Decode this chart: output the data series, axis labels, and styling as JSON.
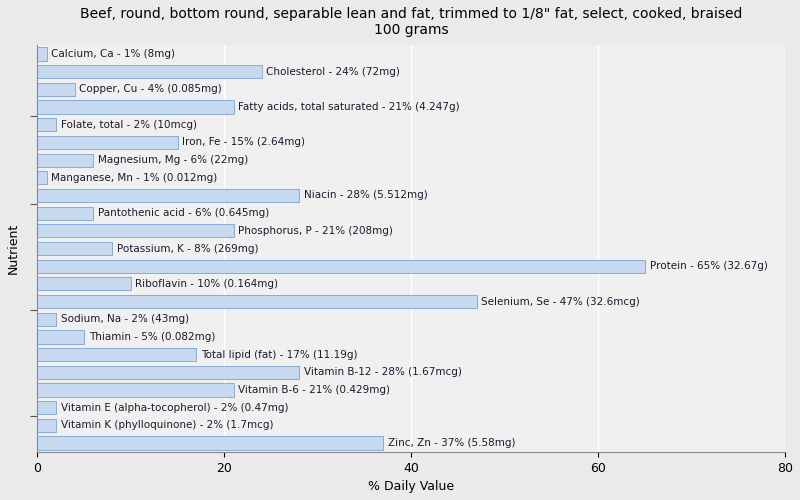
{
  "title": "Beef, round, bottom round, separable lean and fat, trimmed to 1/8\" fat, select, cooked, braised\n100 grams",
  "xlabel": "% Daily Value",
  "ylabel": "Nutrient",
  "nutrients": [
    {
      "label": "Calcium, Ca - 1% (8mg)",
      "value": 1
    },
    {
      "label": "Cholesterol - 24% (72mg)",
      "value": 24
    },
    {
      "label": "Copper, Cu - 4% (0.085mg)",
      "value": 4
    },
    {
      "label": "Fatty acids, total saturated - 21% (4.247g)",
      "value": 21
    },
    {
      "label": "Folate, total - 2% (10mcg)",
      "value": 2
    },
    {
      "label": "Iron, Fe - 15% (2.64mg)",
      "value": 15
    },
    {
      "label": "Magnesium, Mg - 6% (22mg)",
      "value": 6
    },
    {
      "label": "Manganese, Mn - 1% (0.012mg)",
      "value": 1
    },
    {
      "label": "Niacin - 28% (5.512mg)",
      "value": 28
    },
    {
      "label": "Pantothenic acid - 6% (0.645mg)",
      "value": 6
    },
    {
      "label": "Phosphorus, P - 21% (208mg)",
      "value": 21
    },
    {
      "label": "Potassium, K - 8% (269mg)",
      "value": 8
    },
    {
      "label": "Protein - 65% (32.67g)",
      "value": 65
    },
    {
      "label": "Riboflavin - 10% (0.164mg)",
      "value": 10
    },
    {
      "label": "Selenium, Se - 47% (32.6mcg)",
      "value": 47
    },
    {
      "label": "Sodium, Na - 2% (43mg)",
      "value": 2
    },
    {
      "label": "Thiamin - 5% (0.082mg)",
      "value": 5
    },
    {
      "label": "Total lipid (fat) - 17% (11.19g)",
      "value": 17
    },
    {
      "label": "Vitamin B-12 - 28% (1.67mcg)",
      "value": 28
    },
    {
      "label": "Vitamin B-6 - 21% (0.429mg)",
      "value": 21
    },
    {
      "label": "Vitamin E (alpha-tocopherol) - 2% (0.47mg)",
      "value": 2
    },
    {
      "label": "Vitamin K (phylloquinone) - 2% (1.7mcg)",
      "value": 2
    },
    {
      "label": "Zinc, Zn - 37% (5.58mg)",
      "value": 37
    }
  ],
  "bar_color": "#c6d9f1",
  "bar_edge_color": "#4f81bd",
  "outer_bg": "#eaeaea",
  "plot_bg": "#f0f0f0",
  "xlim": [
    0,
    80
  ],
  "title_fontsize": 10,
  "label_fontsize": 7.5,
  "tick_fontsize": 9,
  "label_color": "#1a1a2e"
}
